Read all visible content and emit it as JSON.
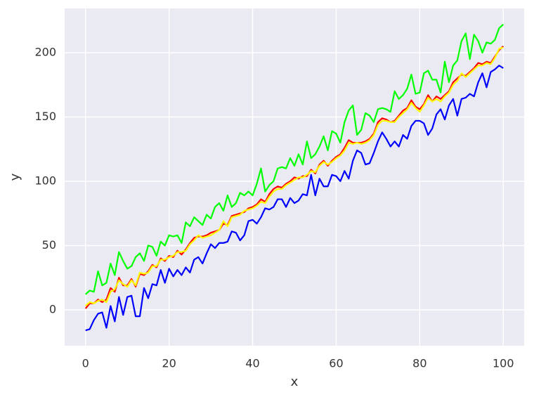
{
  "chart_data": {
    "type": "line",
    "x_label": "x",
    "y_label": "y",
    "x": [
      0,
      1,
      2,
      3,
      4,
      5,
      6,
      7,
      8,
      9,
      10,
      11,
      12,
      13,
      14,
      15,
      16,
      17,
      18,
      19,
      20,
      21,
      22,
      23,
      24,
      25,
      26,
      27,
      28,
      29,
      30,
      31,
      32,
      33,
      34,
      35,
      36,
      37,
      38,
      39,
      40,
      41,
      42,
      43,
      44,
      45,
      46,
      47,
      48,
      49,
      50,
      51,
      52,
      53,
      54,
      55,
      56,
      57,
      58,
      59,
      60,
      61,
      62,
      63,
      64,
      65,
      66,
      67,
      68,
      69,
      70,
      71,
      72,
      73,
      74,
      75,
      76,
      77,
      78,
      79,
      80,
      81,
      82,
      83,
      84,
      85,
      86,
      87,
      88,
      89,
      90,
      91,
      92,
      93,
      94,
      95,
      96,
      97,
      98,
      99,
      100
    ],
    "series": [
      {
        "color": "#ff0000",
        "values": [
          1,
          5,
          5,
          8,
          6,
          8,
          17,
          14,
          25,
          19,
          19,
          24,
          18,
          28,
          27,
          30,
          35,
          33,
          40,
          38,
          42,
          41,
          46,
          43,
          47,
          52,
          56,
          57,
          57,
          58,
          60,
          61,
          62,
          67,
          66,
          73,
          74,
          75,
          76,
          79,
          80,
          82,
          86,
          84,
          90,
          94,
          96,
          95,
          98,
          100,
          103,
          102,
          104,
          104,
          109,
          106,
          113,
          116,
          112,
          116,
          119,
          121,
          126,
          132,
          130,
          130,
          130,
          131,
          133,
          137,
          146,
          149,
          148,
          146,
          147,
          151,
          155,
          157,
          163,
          158,
          156,
          160,
          167,
          162,
          166,
          164,
          167,
          170,
          177,
          180,
          183,
          182,
          185,
          188,
          192,
          191,
          193,
          192,
          197,
          202,
          205
        ]
      },
      {
        "color": "#00ff00",
        "values": [
          12,
          15,
          14,
          30,
          19,
          21,
          36,
          27,
          45,
          38,
          32,
          34,
          41,
          44,
          38,
          50,
          49,
          42,
          53,
          50,
          58,
          57,
          58,
          52,
          68,
          65,
          72,
          69,
          66,
          74,
          71,
          80,
          83,
          77,
          89,
          80,
          83,
          91,
          89,
          92,
          89,
          98,
          110,
          92,
          97,
          100,
          110,
          111,
          110,
          118,
          112,
          121,
          113,
          131,
          118,
          121,
          127,
          135,
          124,
          139,
          137,
          130,
          146,
          155,
          159,
          136,
          140,
          153,
          151,
          146,
          156,
          157,
          156,
          154,
          170,
          164,
          167,
          172,
          183,
          168,
          169,
          184,
          186,
          179,
          179,
          169,
          193,
          177,
          190,
          194,
          209,
          215,
          195,
          214,
          209,
          200,
          208,
          207,
          210,
          219,
          222
        ]
      },
      {
        "color": "#0000ff",
        "values": [
          -16,
          -15,
          -8,
          -3,
          -2,
          -14,
          3,
          -9,
          10,
          -4,
          10,
          11,
          -5,
          -5,
          17,
          9,
          20,
          19,
          31,
          21,
          32,
          26,
          31,
          27,
          33,
          29,
          39,
          41,
          36,
          44,
          51,
          48,
          52,
          52,
          53,
          61,
          60,
          54,
          58,
          69,
          70,
          67,
          72,
          79,
          78,
          80,
          86,
          86,
          80,
          87,
          83,
          85,
          90,
          89,
          105,
          89,
          102,
          96,
          96,
          105,
          104,
          100,
          108,
          102,
          116,
          124,
          122,
          113,
          114,
          122,
          131,
          138,
          133,
          127,
          131,
          127,
          136,
          133,
          143,
          147,
          147,
          145,
          136,
          141,
          152,
          156,
          148,
          159,
          164,
          151,
          164,
          165,
          168,
          166,
          177,
          184,
          173,
          185,
          187,
          190,
          188
        ]
      },
      {
        "color": "#ffff00",
        "values": [
          3,
          6,
          5,
          7,
          8,
          6,
          14,
          16,
          23,
          20,
          18,
          23,
          19,
          29,
          28,
          29,
          34,
          34,
          39,
          39,
          41,
          42,
          45,
          45,
          46,
          51,
          54,
          58,
          56,
          57,
          58,
          60,
          62,
          69,
          65,
          72,
          73,
          74,
          77,
          78,
          79,
          81,
          84,
          83,
          88,
          92,
          94,
          94,
          97,
          99,
          101,
          103,
          103,
          105,
          108,
          107,
          112,
          115,
          113,
          115,
          118,
          120,
          124,
          130,
          129,
          130,
          129,
          130,
          132,
          136,
          144,
          147,
          147,
          146,
          146,
          150,
          153,
          156,
          161,
          157,
          154,
          159,
          165,
          162,
          164,
          162,
          166,
          169,
          175,
          178,
          184,
          181,
          184,
          187,
          190,
          190,
          192,
          191,
          196,
          203,
          204
        ]
      }
    ],
    "xlim": [
      -5,
      105
    ],
    "ylim": [
      -27.9,
      234.4
    ],
    "xticks": [
      0,
      20,
      40,
      60,
      80,
      100
    ],
    "yticks": [
      0,
      50,
      100,
      150,
      200
    ],
    "grid": true,
    "background": "#eaeaf2"
  }
}
